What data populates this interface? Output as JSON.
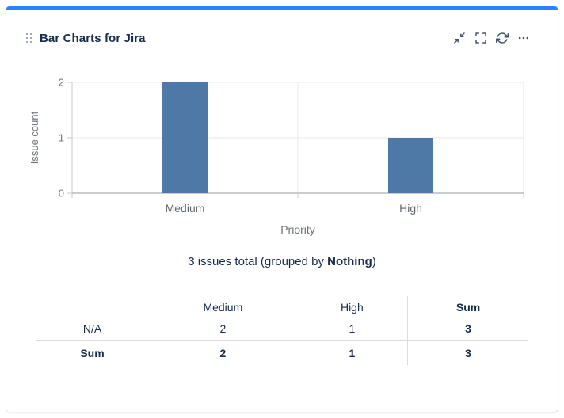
{
  "widget": {
    "title": "Bar Charts for Jira"
  },
  "icons": {
    "drag_handle": "drag-handle-icon",
    "minimize": "collapse-arrows-icon",
    "fullscreen": "fullscreen-brackets-icon",
    "refresh": "refresh-icon",
    "more": "ellipsis-icon"
  },
  "chart_data": {
    "type": "bar",
    "categories": [
      "Medium",
      "High"
    ],
    "values": [
      2,
      1
    ],
    "title": "",
    "xlabel": "Priority",
    "ylabel": "Issue count",
    "ylim": [
      0,
      2
    ],
    "yticks": [
      0,
      1,
      2
    ],
    "grid": true,
    "legend": false,
    "bar_color": "#4e79a7"
  },
  "summary": {
    "prefix": "3 issues total (grouped by ",
    "bold": "Nothing",
    "suffix": ")"
  },
  "table": {
    "header": [
      "",
      "Medium",
      "High",
      "Sum"
    ],
    "rows": [
      {
        "label": "N/A",
        "cells": [
          "2",
          "1",
          "3"
        ]
      },
      {
        "label": "Sum",
        "cells": [
          "2",
          "1",
          "3"
        ]
      }
    ]
  },
  "colors": {
    "accent": "#2684ff",
    "bar": "#4e79a7",
    "title_text": "#172b4d",
    "chart_text": "#6e737a",
    "tick_text": "#75797e",
    "axis_line": "#95999e",
    "minor_line": "#c6c9cd",
    "gridline": "#e8e9eb",
    "table_divider": "#d8dbdf",
    "card_border": "#dcdfe5",
    "icon": "#44546f"
  }
}
